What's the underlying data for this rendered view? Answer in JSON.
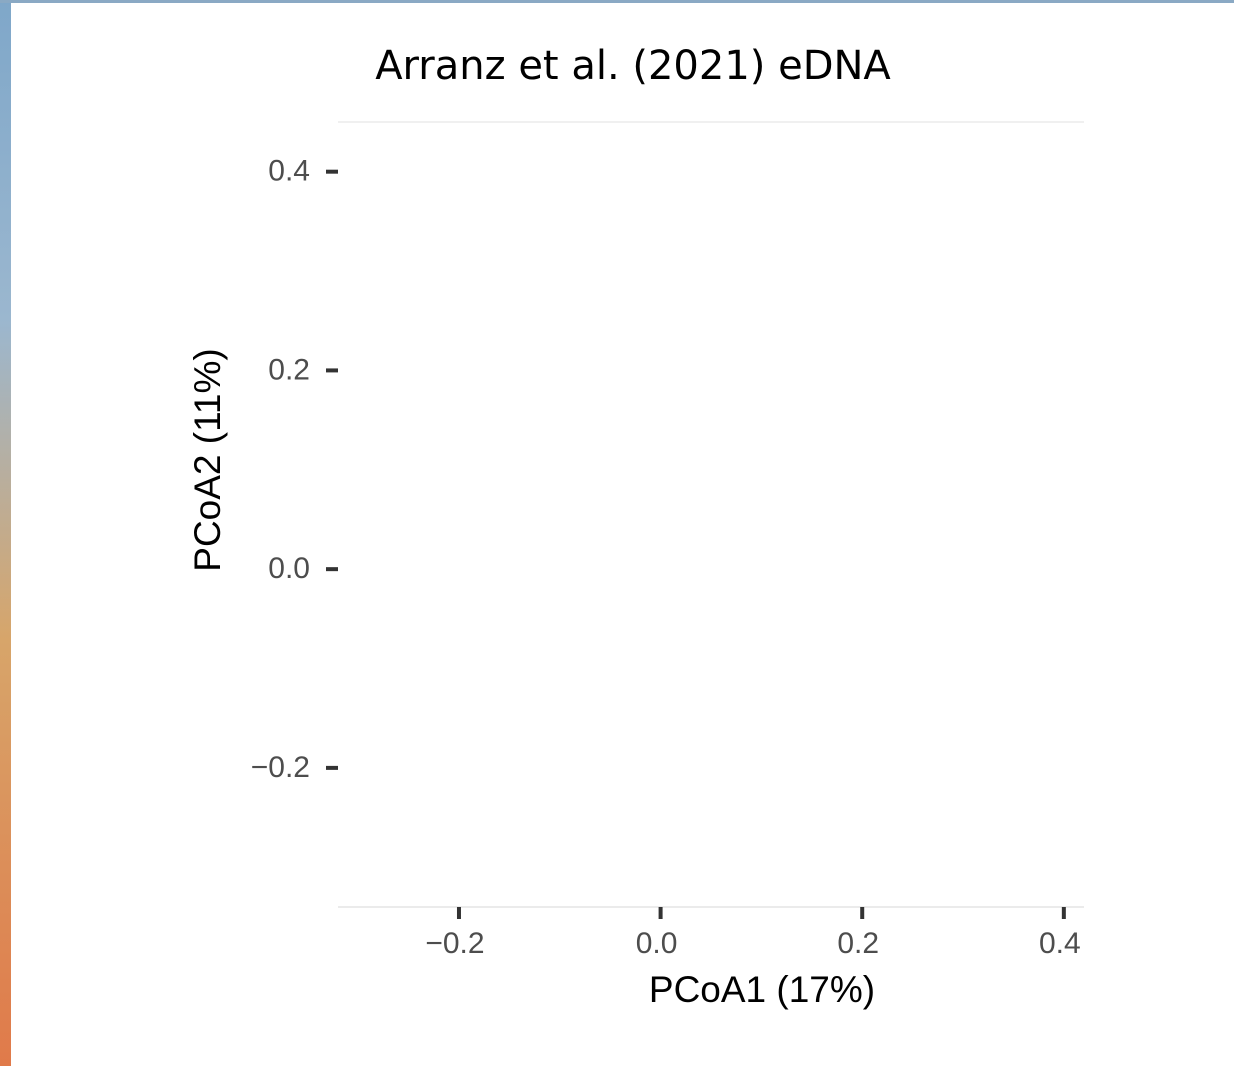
{
  "chart_data": {
    "type": "scatter",
    "title": "Arranz et al. (2021) eDNA",
    "xlabel": "PCoA1 (17%)",
    "ylabel": "PCoA2 (11%)",
    "xlim": [
      -0.32,
      0.42
    ],
    "ylim": [
      -0.34,
      0.45
    ],
    "xticks": [
      {
        "value": -0.2,
        "label": "−0.2"
      },
      {
        "value": 0,
        "label": "0.0"
      },
      0.2,
      0.4
    ],
    "yticks": [
      {
        "value": -0.2,
        "label": "−0.2"
      },
      {
        "value": 0,
        "label": "0.0"
      },
      0.2,
      0.4
    ],
    "series": []
  }
}
